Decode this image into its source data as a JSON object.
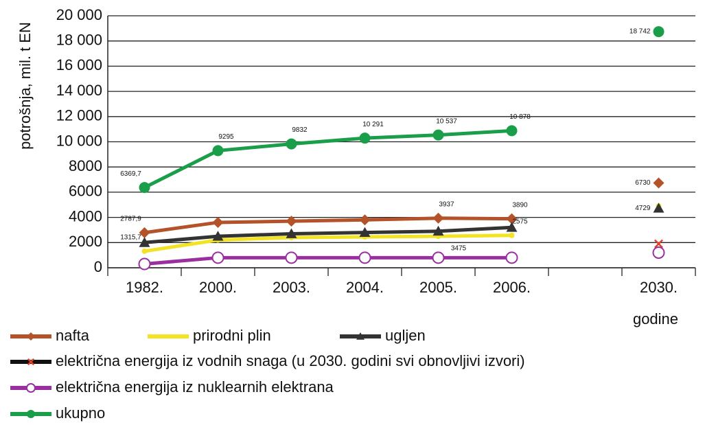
{
  "chart_data": {
    "type": "line",
    "y_label": "potrošnja, mil. t EN",
    "x_label": "godine",
    "categories": [
      "1982.",
      "2000.",
      "2003.",
      "2004.",
      "2005.",
      "2006.",
      null,
      "2030."
    ],
    "ylim": [
      0,
      20000
    ],
    "yticks": [
      0,
      2000,
      4000,
      6000,
      8000,
      {
        "value": 10000,
        "label": "10 000"
      },
      {
        "value": 12000,
        "label": "12 000"
      },
      {
        "value": 14000,
        "label": "14 000"
      },
      {
        "value": 16000,
        "label": "16 000"
      },
      {
        "value": 18000,
        "label": "18 000"
      },
      {
        "value": 20000,
        "label": "20 000"
      }
    ],
    "grid": true,
    "series": [
      {
        "name": "nafta",
        "color": "#b4522a",
        "marker": "diamond",
        "values": [
          2787.9,
          3600,
          3700,
          3800,
          3937,
          3890,
          null,
          6730
        ],
        "value_labels": [
          "2787,9",
          null,
          null,
          null,
          "3937",
          "3890",
          null,
          "6730"
        ]
      },
      {
        "name": "prirodni plin",
        "color": "#f2e324",
        "marker": "star",
        "values": [
          1315.7,
          2200,
          2400,
          2450,
          2500,
          2575,
          null,
          4900
        ],
        "value_labels": [
          "1315,7",
          null,
          null,
          null,
          null,
          "2575",
          null,
          null
        ]
      },
      {
        "name": "ugljen",
        "color": "#333333",
        "marker": "triangle",
        "values": [
          2000,
          2500,
          2700,
          2800,
          2900,
          3200,
          null,
          4729
        ],
        "value_labels": [
          null,
          null,
          null,
          null,
          null,
          null,
          null,
          "4729"
        ]
      },
      {
        "name": "električna energija iz vodnih snaga (u 2030. godini svi obnovljivi izvori)",
        "color": "#111111",
        "marker_color": "#e0402a",
        "marker": "x",
        "values": [
          null,
          null,
          null,
          null,
          null,
          null,
          null,
          1900
        ]
      },
      {
        "name": "električna energija iz nuklearnih elektrana",
        "color": "#9a2fa0",
        "marker": "circle-open",
        "values": [
          300,
          800,
          800,
          800,
          800,
          800,
          null,
          1200
        ]
      },
      {
        "name": "ukupno",
        "color": "#1a9e4a",
        "marker": "circle",
        "values": [
          6369.7,
          9295,
          9832,
          10291,
          10537,
          10878,
          null,
          18742
        ],
        "value_labels": [
          "6369,7",
          "9295",
          "9832",
          "10 291",
          "10 537",
          "10 878",
          null,
          "18 742"
        ]
      }
    ],
    "annotations": [
      "3475"
    ]
  }
}
